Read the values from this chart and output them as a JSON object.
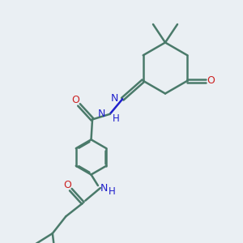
{
  "bg_color": "#eaeff3",
  "bond_color": "#4a7a6a",
  "N_color": "#2020cc",
  "O_color": "#cc2020",
  "bond_width": 1.8,
  "figsize": [
    3.0,
    3.0
  ],
  "dpi": 100,
  "xlim": [
    0,
    10
  ],
  "ylim": [
    0,
    10
  ]
}
